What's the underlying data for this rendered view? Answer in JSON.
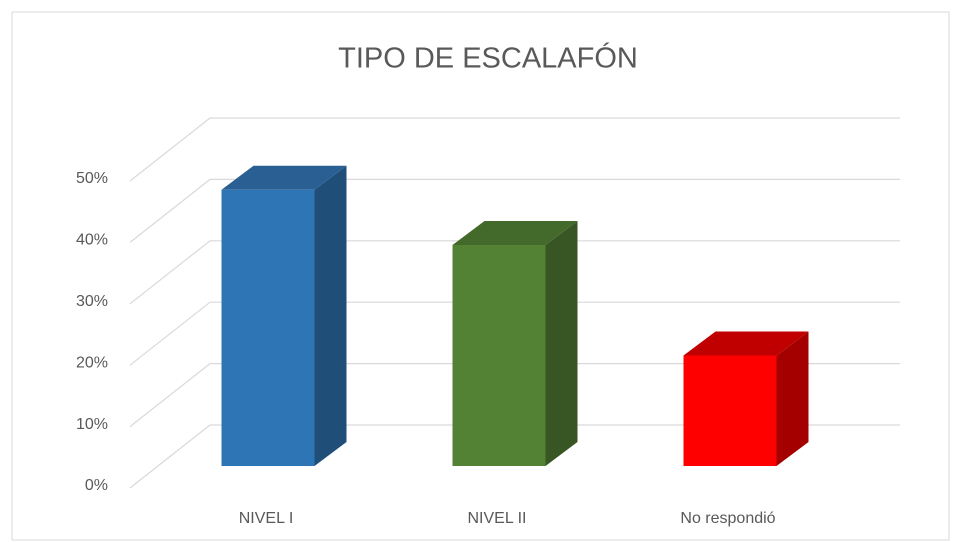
{
  "chart_data": {
    "type": "bar3d",
    "title": "TIPO DE ESCALAFÓN",
    "categories": [
      "NIVEL I",
      "NIVEL II",
      "No respondió"
    ],
    "values": [
      45,
      36,
      18
    ],
    "colors": [
      [
        "#2e75b6",
        "#2a5f93",
        "#1f4e79"
      ],
      [
        "#548235",
        "#436a2a",
        "#375623"
      ],
      [
        "#ff0000",
        "#c00000",
        "#a50000"
      ]
    ],
    "ylim": [
      0,
      50
    ],
    "yticks": [
      {
        "value": 0,
        "label": "0%"
      },
      {
        "value": 10,
        "label": "10%"
      },
      {
        "value": 20,
        "label": "20%"
      },
      {
        "value": 30,
        "label": "30%"
      },
      {
        "value": 40,
        "label": "40%"
      },
      {
        "value": 50,
        "label": "50%"
      }
    ],
    "grid": true
  }
}
